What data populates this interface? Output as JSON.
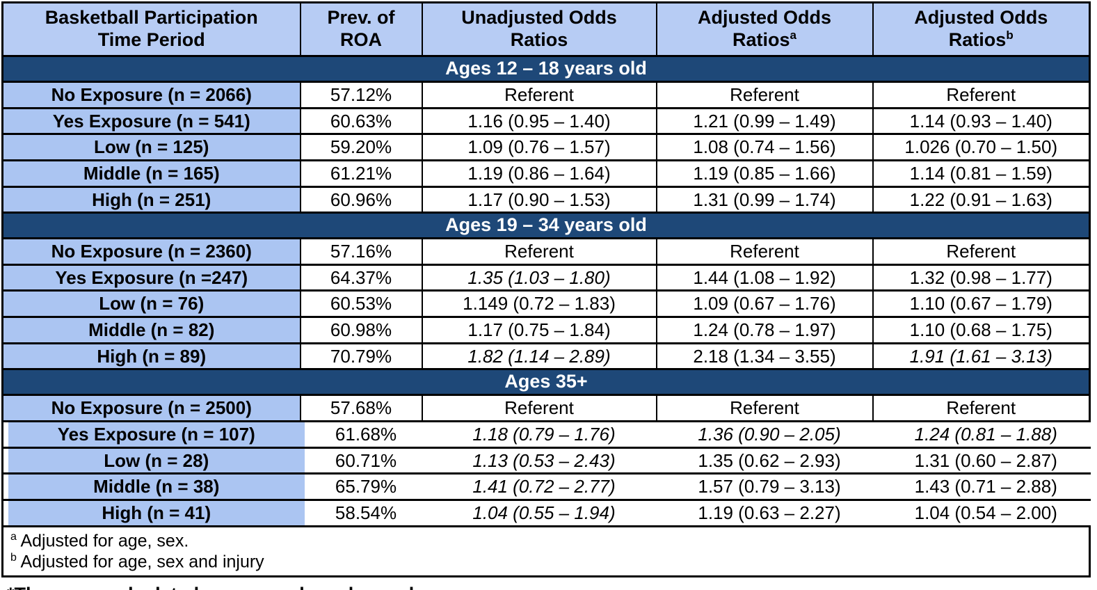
{
  "colors": {
    "header_bg": "#b7ccf4",
    "row_label_bg": "#abc5f2",
    "section_header_bg": "#1e4878",
    "section_header_text": "#ffffff",
    "body_text": "#000000"
  },
  "chart_data": {
    "type": "table",
    "columns": [
      {
        "label": "Basketball Participation\nTime Period",
        "sup": ""
      },
      {
        "label": "Prev. of\nROA",
        "sup": ""
      },
      {
        "label": "Unadjusted Odds\nRatios",
        "sup": ""
      },
      {
        "label": "Adjusted Odds\nRatios",
        "sup": "a"
      },
      {
        "label": "Adjusted Odds\nRatios",
        "sup": "b"
      }
    ],
    "sections": [
      {
        "header": "Ages 12 – 18 years old",
        "rows": [
          {
            "cells": [
              {
                "t": "No Exposure (n = 2066)"
              },
              {
                "t": "57.12%"
              },
              {
                "t": "Referent"
              },
              {
                "t": "Referent"
              },
              {
                "t": "Referent"
              }
            ]
          },
          {
            "cells": [
              {
                "t": "Yes Exposure (n = 541)"
              },
              {
                "t": "60.63%"
              },
              {
                "t": "1.16 (0.95 – 1.40)"
              },
              {
                "t": "1.21 (0.99 – 1.49)"
              },
              {
                "t": "1.14 (0.93 – 1.40)"
              }
            ]
          },
          {
            "cells": [
              {
                "t": "Low (n = 125)"
              },
              {
                "t": "59.20%"
              },
              {
                "t": "1.09 (0.76 – 1.57)"
              },
              {
                "t": "1.08 (0.74 – 1.56)"
              },
              {
                "t": "1.026 (0.70 – 1.50)"
              }
            ]
          },
          {
            "cells": [
              {
                "t": "Middle (n = 165)"
              },
              {
                "t": "61.21%"
              },
              {
                "t": "1.19 (0.86 – 1.64)"
              },
              {
                "t": "1.19 (0.85 – 1.66)"
              },
              {
                "t": "1.14 (0.81 – 1.59)"
              }
            ]
          },
          {
            "cells": [
              {
                "t": "High (n = 251)"
              },
              {
                "t": "60.96%"
              },
              {
                "t": "1.17 (0.90 – 1.53)"
              },
              {
                "t": "1.31 (0.99 – 1.74)"
              },
              {
                "t": "1.22 (0.91 – 1.63)"
              }
            ]
          }
        ]
      },
      {
        "header": "Ages 19 – 34 years old",
        "rows": [
          {
            "cells": [
              {
                "t": "No Exposure (n = 2360)"
              },
              {
                "t": "57.16%"
              },
              {
                "t": "Referent"
              },
              {
                "t": "Referent"
              },
              {
                "t": "Referent"
              }
            ]
          },
          {
            "cells": [
              {
                "t": "Yes Exposure (n =247)"
              },
              {
                "t": "64.37%"
              },
              {
                "t": "1.35 (1.03 – 1.80)",
                "em": "bi"
              },
              {
                "t": "1.44 (1.08 – 1.92)",
                "em": "b"
              },
              {
                "t": "1.32 (0.98 – 1.77)"
              }
            ]
          },
          {
            "cells": [
              {
                "t": "Low (n = 76)"
              },
              {
                "t": "60.53%"
              },
              {
                "t": "1.149 (0.72 – 1.83)"
              },
              {
                "t": "1.09 (0.67 – 1.76)"
              },
              {
                "t": "1.10 (0.67 – 1.79)"
              }
            ]
          },
          {
            "cells": [
              {
                "t": "Middle (n = 82)"
              },
              {
                "t": "60.98%"
              },
              {
                "t": "1.17 (0.75 – 1.84)"
              },
              {
                "t": "1.24 (0.78 – 1.97)"
              },
              {
                "t": "1.10 (0.68 – 1.75)"
              }
            ]
          },
          {
            "cells": [
              {
                "t": "High (n = 89)"
              },
              {
                "t": "70.79%"
              },
              {
                "t": "1.82 (1.14 – 2.89)",
                "em": "bi"
              },
              {
                "t": "2.18 (1.34 – 3.55)",
                "em": "b"
              },
              {
                "t": "1.91 (1.61 – 3.13)",
                "em": "bi"
              }
            ]
          }
        ]
      },
      {
        "header": "Ages 35+",
        "rows": [
          {
            "cells": [
              {
                "t": "No Exposure (n = 2500)"
              },
              {
                "t": "57.68%"
              },
              {
                "t": "Referent"
              },
              {
                "t": "Referent"
              },
              {
                "t": "Referent"
              }
            ]
          },
          {
            "offset": true,
            "cells": [
              {
                "t": "Yes Exposure (n = 107)"
              },
              {
                "t": "61.68%"
              },
              {
                "t": "1.18 (0.79 – 1.76)",
                "em": "i"
              },
              {
                "t": "1.36 (0.90 – 2.05)",
                "em": "i"
              },
              {
                "t": "1.24 (0.81 – 1.88)",
                "em": "i"
              }
            ]
          },
          {
            "offset": true,
            "cells": [
              {
                "t": "Low (n = 28)"
              },
              {
                "t": "60.71%"
              },
              {
                "t": "1.13 (0.53 – 2.43)",
                "em": "i"
              },
              {
                "t": "1.35 (0.62 – 2.93)"
              },
              {
                "t": "1.31 (0.60 – 2.87)"
              }
            ]
          },
          {
            "offset": true,
            "cells": [
              {
                "t": "Middle (n = 38)"
              },
              {
                "t": "65.79%"
              },
              {
                "t": "1.41 (0.72 – 2.77)",
                "em": "i"
              },
              {
                "t": "1.57 (0.79 – 3.13)"
              },
              {
                "t": "1.43 (0.71 – 2.88)"
              }
            ]
          },
          {
            "offset": true,
            "cells": [
              {
                "t": "High (n = 41)"
              },
              {
                "t": "58.54%"
              },
              {
                "t": "1.04 (0.55 – 1.94)",
                "em": "i"
              },
              {
                "t": "1.19 (0.63 – 2.27)"
              },
              {
                "t": "1.04 (0.54 – 2.00)"
              }
            ]
          }
        ]
      }
    ],
    "footnotes": [
      {
        "sup": "a",
        "text": "Adjusted for age, sex."
      },
      {
        "sup": "b",
        "text": "Adjusted for age, sex and injury"
      }
    ],
    "caption": "*These are calculated as person-based prevalence measures."
  }
}
